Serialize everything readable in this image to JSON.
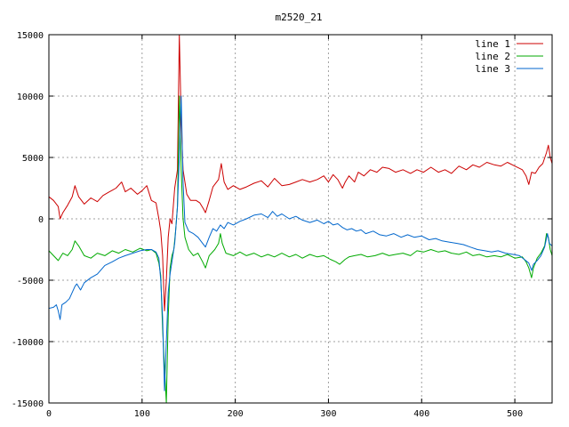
{
  "chart_data": {
    "type": "line",
    "title": "m2520_21",
    "xlabel": "",
    "ylabel": "",
    "xlim": [
      0,
      540
    ],
    "ylim": [
      -15000,
      15000
    ],
    "x_ticks": [
      0,
      100,
      200,
      300,
      400,
      500
    ],
    "y_ticks": [
      -15000,
      -10000,
      -5000,
      0,
      5000,
      10000,
      15000
    ],
    "grid": true,
    "legend_position": "top-right",
    "series": [
      {
        "name": "line 1",
        "color": "#cc0000",
        "points": [
          [
            0,
            1800
          ],
          [
            5,
            1500
          ],
          [
            10,
            1000
          ],
          [
            12,
            0
          ],
          [
            15,
            500
          ],
          [
            20,
            1100
          ],
          [
            25,
            1800
          ],
          [
            28,
            2700
          ],
          [
            32,
            1800
          ],
          [
            38,
            1200
          ],
          [
            45,
            1700
          ],
          [
            52,
            1400
          ],
          [
            58,
            1900
          ],
          [
            65,
            2200
          ],
          [
            72,
            2500
          ],
          [
            78,
            3000
          ],
          [
            82,
            2200
          ],
          [
            88,
            2500
          ],
          [
            95,
            2000
          ],
          [
            100,
            2300
          ],
          [
            105,
            2700
          ],
          [
            110,
            1500
          ],
          [
            115,
            1300
          ],
          [
            118,
            0
          ],
          [
            120,
            -1000
          ],
          [
            122,
            -3000
          ],
          [
            124,
            -7500
          ],
          [
            126,
            -5000
          ],
          [
            128,
            -1500
          ],
          [
            130,
            0
          ],
          [
            132,
            -400
          ],
          [
            135,
            2500
          ],
          [
            138,
            4000
          ],
          [
            140,
            15000
          ],
          [
            142,
            8000
          ],
          [
            144,
            4000
          ],
          [
            146,
            3000
          ],
          [
            148,
            2000
          ],
          [
            152,
            1500
          ],
          [
            158,
            1500
          ],
          [
            162,
            1300
          ],
          [
            166,
            800
          ],
          [
            168,
            500
          ],
          [
            172,
            1500
          ],
          [
            176,
            2600
          ],
          [
            182,
            3200
          ],
          [
            185,
            4500
          ],
          [
            188,
            3000
          ],
          [
            192,
            2400
          ],
          [
            198,
            2700
          ],
          [
            205,
            2400
          ],
          [
            212,
            2600
          ],
          [
            220,
            2900
          ],
          [
            228,
            3100
          ],
          [
            235,
            2600
          ],
          [
            242,
            3300
          ],
          [
            250,
            2700
          ],
          [
            258,
            2800
          ],
          [
            265,
            3000
          ],
          [
            272,
            3200
          ],
          [
            280,
            3000
          ],
          [
            288,
            3200
          ],
          [
            295,
            3500
          ],
          [
            300,
            3000
          ],
          [
            305,
            3600
          ],
          [
            310,
            3200
          ],
          [
            315,
            2500
          ],
          [
            318,
            3000
          ],
          [
            322,
            3500
          ],
          [
            328,
            3000
          ],
          [
            332,
            3800
          ],
          [
            338,
            3500
          ],
          [
            345,
            4000
          ],
          [
            352,
            3800
          ],
          [
            358,
            4200
          ],
          [
            365,
            4100
          ],
          [
            372,
            3800
          ],
          [
            380,
            4000
          ],
          [
            388,
            3700
          ],
          [
            395,
            4000
          ],
          [
            402,
            3800
          ],
          [
            410,
            4200
          ],
          [
            418,
            3800
          ],
          [
            425,
            4000
          ],
          [
            432,
            3700
          ],
          [
            440,
            4300
          ],
          [
            448,
            4000
          ],
          [
            455,
            4400
          ],
          [
            462,
            4200
          ],
          [
            470,
            4600
          ],
          [
            478,
            4400
          ],
          [
            485,
            4300
          ],
          [
            492,
            4600
          ],
          [
            500,
            4300
          ],
          [
            508,
            4000
          ],
          [
            512,
            3500
          ],
          [
            515,
            2800
          ],
          [
            518,
            3800
          ],
          [
            522,
            3700
          ],
          [
            526,
            4200
          ],
          [
            530,
            4500
          ],
          [
            534,
            5400
          ],
          [
            536,
            6000
          ],
          [
            538,
            5000
          ],
          [
            540,
            4500
          ]
        ]
      },
      {
        "name": "line 2",
        "color": "#00aa00",
        "points": [
          [
            0,
            -2600
          ],
          [
            5,
            -3000
          ],
          [
            10,
            -3400
          ],
          [
            15,
            -2800
          ],
          [
            20,
            -3000
          ],
          [
            25,
            -2500
          ],
          [
            28,
            -1800
          ],
          [
            32,
            -2200
          ],
          [
            38,
            -3000
          ],
          [
            45,
            -3200
          ],
          [
            52,
            -2800
          ],
          [
            60,
            -3000
          ],
          [
            68,
            -2600
          ],
          [
            75,
            -2800
          ],
          [
            82,
            -2500
          ],
          [
            90,
            -2700
          ],
          [
            98,
            -2400
          ],
          [
            105,
            -2600
          ],
          [
            110,
            -2500
          ],
          [
            115,
            -2800
          ],
          [
            118,
            -3600
          ],
          [
            120,
            -4600
          ],
          [
            122,
            -9000
          ],
          [
            124,
            -12000
          ],
          [
            126,
            -15000
          ],
          [
            128,
            -8000
          ],
          [
            130,
            -4000
          ],
          [
            132,
            -3000
          ],
          [
            134,
            -2500
          ],
          [
            136,
            -1000
          ],
          [
            138,
            1000
          ],
          [
            140,
            10000
          ],
          [
            142,
            4000
          ],
          [
            144,
            0
          ],
          [
            146,
            -1500
          ],
          [
            150,
            -2500
          ],
          [
            155,
            -3000
          ],
          [
            160,
            -2800
          ],
          [
            165,
            -3500
          ],
          [
            168,
            -4000
          ],
          [
            172,
            -3000
          ],
          [
            178,
            -2500
          ],
          [
            182,
            -2000
          ],
          [
            184,
            -1200
          ],
          [
            186,
            -2000
          ],
          [
            190,
            -2800
          ],
          [
            198,
            -3000
          ],
          [
            205,
            -2700
          ],
          [
            212,
            -3000
          ],
          [
            220,
            -2800
          ],
          [
            228,
            -3100
          ],
          [
            235,
            -2900
          ],
          [
            242,
            -3100
          ],
          [
            250,
            -2800
          ],
          [
            258,
            -3100
          ],
          [
            265,
            -2900
          ],
          [
            272,
            -3200
          ],
          [
            280,
            -2900
          ],
          [
            288,
            -3100
          ],
          [
            295,
            -3000
          ],
          [
            302,
            -3300
          ],
          [
            308,
            -3500
          ],
          [
            312,
            -3700
          ],
          [
            318,
            -3300
          ],
          [
            322,
            -3100
          ],
          [
            328,
            -3000
          ],
          [
            335,
            -2900
          ],
          [
            342,
            -3100
          ],
          [
            350,
            -3000
          ],
          [
            358,
            -2800
          ],
          [
            365,
            -3000
          ],
          [
            372,
            -2900
          ],
          [
            380,
            -2800
          ],
          [
            388,
            -3000
          ],
          [
            395,
            -2600
          ],
          [
            402,
            -2700
          ],
          [
            410,
            -2500
          ],
          [
            418,
            -2700
          ],
          [
            425,
            -2600
          ],
          [
            432,
            -2800
          ],
          [
            440,
            -2900
          ],
          [
            448,
            -2700
          ],
          [
            455,
            -3000
          ],
          [
            462,
            -2900
          ],
          [
            470,
            -3100
          ],
          [
            478,
            -3000
          ],
          [
            485,
            -3100
          ],
          [
            492,
            -2900
          ],
          [
            500,
            -3200
          ],
          [
            508,
            -3100
          ],
          [
            512,
            -3500
          ],
          [
            515,
            -4000
          ],
          [
            518,
            -4800
          ],
          [
            520,
            -4000
          ],
          [
            524,
            -3200
          ],
          [
            528,
            -2800
          ],
          [
            532,
            -2200
          ],
          [
            534,
            -1200
          ],
          [
            536,
            -1500
          ],
          [
            538,
            -2500
          ],
          [
            540,
            -3000
          ]
        ]
      },
      {
        "name": "line 3",
        "color": "#0066cc",
        "points": [
          [
            0,
            -7300
          ],
          [
            5,
            -7200
          ],
          [
            8,
            -7000
          ],
          [
            10,
            -7500
          ],
          [
            12,
            -8200
          ],
          [
            14,
            -7000
          ],
          [
            18,
            -6800
          ],
          [
            22,
            -6500
          ],
          [
            25,
            -6000
          ],
          [
            28,
            -5500
          ],
          [
            30,
            -5300
          ],
          [
            34,
            -5800
          ],
          [
            38,
            -5200
          ],
          [
            45,
            -4800
          ],
          [
            52,
            -4500
          ],
          [
            60,
            -3800
          ],
          [
            68,
            -3500
          ],
          [
            75,
            -3200
          ],
          [
            82,
            -3000
          ],
          [
            90,
            -2800
          ],
          [
            98,
            -2600
          ],
          [
            105,
            -2500
          ],
          [
            110,
            -2500
          ],
          [
            115,
            -2700
          ],
          [
            118,
            -3200
          ],
          [
            120,
            -5000
          ],
          [
            122,
            -8000
          ],
          [
            124,
            -14000
          ],
          [
            126,
            -10000
          ],
          [
            128,
            -6000
          ],
          [
            130,
            -4500
          ],
          [
            132,
            -3500
          ],
          [
            135,
            -2000
          ],
          [
            138,
            1000
          ],
          [
            140,
            5000
          ],
          [
            142,
            10000
          ],
          [
            144,
            3000
          ],
          [
            146,
            -300
          ],
          [
            150,
            -1000
          ],
          [
            155,
            -1200
          ],
          [
            160,
            -1500
          ],
          [
            165,
            -2000
          ],
          [
            168,
            -2300
          ],
          [
            172,
            -1500
          ],
          [
            176,
            -800
          ],
          [
            180,
            -1000
          ],
          [
            184,
            -500
          ],
          [
            188,
            -800
          ],
          [
            192,
            -300
          ],
          [
            198,
            -500
          ],
          [
            205,
            -200
          ],
          [
            212,
            0
          ],
          [
            220,
            300
          ],
          [
            228,
            400
          ],
          [
            235,
            100
          ],
          [
            240,
            600
          ],
          [
            245,
            200
          ],
          [
            250,
            400
          ],
          [
            258,
            0
          ],
          [
            265,
            200
          ],
          [
            272,
            -100
          ],
          [
            280,
            -300
          ],
          [
            288,
            -100
          ],
          [
            295,
            -400
          ],
          [
            300,
            -200
          ],
          [
            305,
            -500
          ],
          [
            310,
            -400
          ],
          [
            315,
            -700
          ],
          [
            320,
            -900
          ],
          [
            325,
            -800
          ],
          [
            330,
            -1000
          ],
          [
            335,
            -900
          ],
          [
            340,
            -1200
          ],
          [
            348,
            -1000
          ],
          [
            355,
            -1300
          ],
          [
            362,
            -1400
          ],
          [
            370,
            -1200
          ],
          [
            378,
            -1500
          ],
          [
            385,
            -1300
          ],
          [
            392,
            -1500
          ],
          [
            400,
            -1400
          ],
          [
            408,
            -1700
          ],
          [
            415,
            -1600
          ],
          [
            422,
            -1800
          ],
          [
            430,
            -1900
          ],
          [
            438,
            -2000
          ],
          [
            445,
            -2100
          ],
          [
            452,
            -2300
          ],
          [
            460,
            -2500
          ],
          [
            468,
            -2600
          ],
          [
            475,
            -2700
          ],
          [
            482,
            -2600
          ],
          [
            490,
            -2800
          ],
          [
            498,
            -2900
          ],
          [
            505,
            -3000
          ],
          [
            510,
            -3300
          ],
          [
            515,
            -3600
          ],
          [
            518,
            -4200
          ],
          [
            520,
            -3700
          ],
          [
            524,
            -3400
          ],
          [
            528,
            -3000
          ],
          [
            532,
            -2300
          ],
          [
            535,
            -1200
          ],
          [
            537,
            -2000
          ],
          [
            540,
            -2200
          ]
        ]
      }
    ]
  }
}
